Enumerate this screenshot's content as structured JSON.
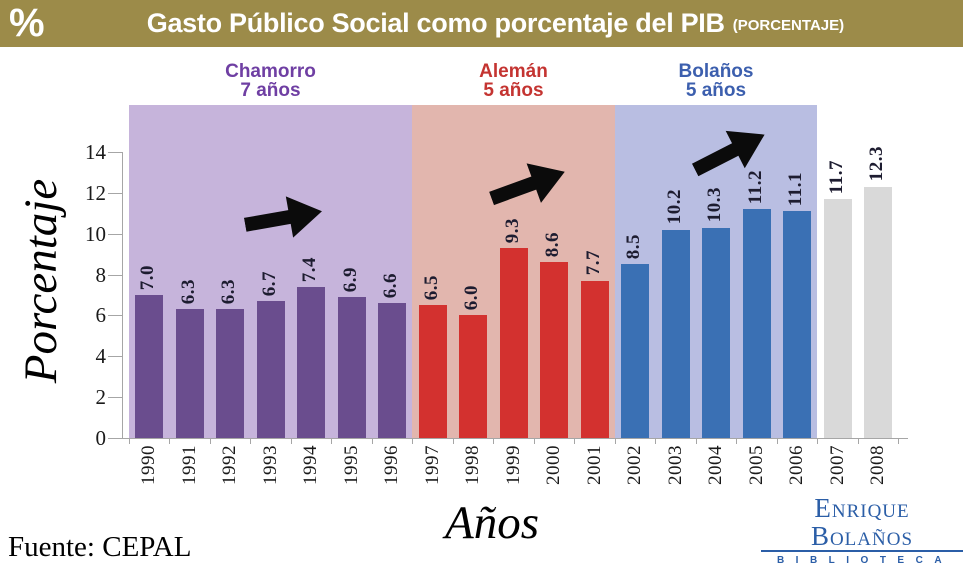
{
  "header": {
    "percent_symbol": "%",
    "title": "Gasto Público Social como porcentaje del PIB",
    "subtitle": "(PORCENTAJE)",
    "bg_color": "#9C8B49"
  },
  "chart_data": {
    "type": "bar",
    "title": "Gasto Público Social como porcentaje del PIB",
    "xlabel": "Años",
    "ylabel": "Porcentaje",
    "ylim": [
      0,
      14
    ],
    "yticks": [
      0,
      2,
      4,
      6,
      8,
      10,
      12,
      14
    ],
    "grid": false,
    "categories": [
      "1990",
      "1991",
      "1992",
      "1993",
      "1994",
      "1995",
      "1996",
      "1997",
      "1998",
      "1999",
      "2000",
      "2001",
      "2002",
      "2003",
      "2004",
      "2005",
      "2006",
      "2007",
      "2008"
    ],
    "values": [
      7.0,
      6.3,
      6.3,
      6.7,
      7.4,
      6.9,
      6.6,
      6.5,
      6.0,
      9.3,
      8.6,
      7.7,
      8.5,
      10.2,
      10.3,
      11.2,
      11.1,
      11.7,
      12.3
    ],
    "value_labels": [
      "7.0",
      "6.3",
      "6.3",
      "6.7",
      "7.4",
      "6.9",
      "6.6",
      "6.5",
      "6.0",
      "9.3",
      "8.6",
      "7.7",
      "8.5",
      "10.2",
      "10.3",
      "11.2",
      "11.1",
      "11.7",
      "12.3"
    ],
    "default_bar_color": "#D9D9D9",
    "axis_color": "#A6A6A6",
    "groups": [
      {
        "name": "Chamorro",
        "duration": "7 años",
        "start": 0,
        "end": 6,
        "bar_color": "#6A4D8E",
        "band_color": "#C6B4DB",
        "text_color": "#6F3FA3",
        "annotation": "up-right-arrow"
      },
      {
        "name": "Alemán",
        "duration": "5 años",
        "start": 7,
        "end": 11,
        "bar_color": "#D3312F",
        "band_color": "#E2B6AE",
        "text_color": "#C43431",
        "annotation": "up-right-arrow"
      },
      {
        "name": "Bolaños",
        "duration": "5 años",
        "start": 12,
        "end": 16,
        "bar_color": "#3A70B4",
        "band_color": "#B9BEE2",
        "text_color": "#3C5FAE",
        "annotation": "up-right-arrow"
      }
    ],
    "annotation_color": "#0b0b0b"
  },
  "footer": {
    "source": "Fuente: CEPAL",
    "logo_line1": "Enrique Bolaños",
    "logo_line2": "BIBLIOTECA"
  }
}
